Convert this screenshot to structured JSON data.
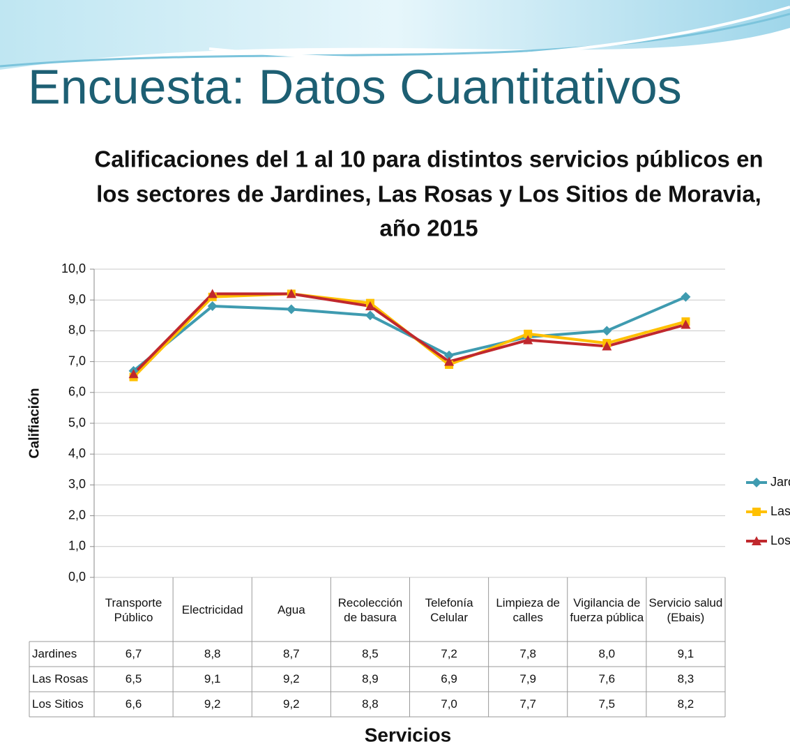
{
  "slide_title": "Encuesta: Datos Cuantitativos",
  "chart_data": {
    "type": "line",
    "title": [
      "Calificaciones del 1 al 10 para distintos servicios públicos en",
      "los sectores de Jardines, Las Rosas y Los Sitios de Moravia,",
      "año 2015"
    ],
    "xlabel": "Servicios",
    "ylabel": "Califiación",
    "categories": [
      "Transporte Público",
      "Electricidad",
      "Agua",
      "Recolección de basura",
      "Telefonía Celular",
      "Limpieza de calles",
      "Vigilancia de fuerza pública",
      "Servicio salud (Ebais)"
    ],
    "series": [
      {
        "name": "Jardines",
        "color": "#3f9bb0",
        "marker": "diamond",
        "values": [
          6.7,
          8.8,
          8.7,
          8.5,
          7.2,
          7.8,
          8.0,
          9.1
        ],
        "value_labels": [
          "6,7",
          "8,8",
          "8,7",
          "8,5",
          "7,2",
          "7,8",
          "8,0",
          "9,1"
        ]
      },
      {
        "name": "Las Rosas",
        "color": "#ffc000",
        "marker": "square",
        "values": [
          6.5,
          9.1,
          9.2,
          8.9,
          6.9,
          7.9,
          7.6,
          8.3
        ],
        "value_labels": [
          "6,5",
          "9,1",
          "9,2",
          "8,9",
          "6,9",
          "7,9",
          "7,6",
          "8,3"
        ]
      },
      {
        "name": "Los Sitios",
        "color": "#c0282d",
        "marker": "triangle",
        "values": [
          6.6,
          9.2,
          9.2,
          8.8,
          7.0,
          7.7,
          7.5,
          8.2
        ],
        "value_labels": [
          "6,6",
          "9,2",
          "9,2",
          "8,8",
          "7,0",
          "7,7",
          "7,5",
          "8,2"
        ]
      }
    ],
    "ylim": [
      0,
      10
    ],
    "yticks": [
      {
        "value": 0,
        "label": "0,0"
      },
      {
        "value": 1,
        "label": "1,0"
      },
      {
        "value": 2,
        "label": "2,0"
      },
      {
        "value": 3,
        "label": "3,0"
      },
      {
        "value": 4,
        "label": "4,0"
      },
      {
        "value": 5,
        "label": "5,0"
      },
      {
        "value": 6,
        "label": "6,0"
      },
      {
        "value": 7,
        "label": "7,0"
      },
      {
        "value": 8,
        "label": "8,0"
      },
      {
        "value": 9,
        "label": "9,0"
      },
      {
        "value": 10,
        "label": "10,0"
      }
    ],
    "grid": true,
    "legend": "right"
  }
}
